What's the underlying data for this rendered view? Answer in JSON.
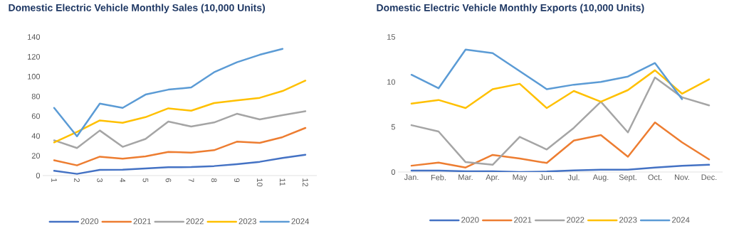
{
  "chart_data": [
    {
      "type": "line",
      "title": "Domestic Electric Vehicle Monthly Sales (10,000 Units)",
      "categories": [
        "1",
        "2",
        "3",
        "4",
        "5",
        "6",
        "7",
        "8",
        "9",
        "10",
        "11",
        "12"
      ],
      "ylim": [
        0,
        140
      ],
      "yticks": [
        0,
        20,
        40,
        60,
        80,
        100,
        120,
        140
      ],
      "legend": "bottom",
      "series": [
        {
          "name": "2020",
          "color": "#4472c4",
          "values": [
            4.8,
            1.7,
            5.7,
            6,
            7.2,
            8.4,
            8.6,
            9.6,
            11.5,
            13.9,
            17.7,
            21
          ]
        },
        {
          "name": "2021",
          "color": "#ed7d31",
          "values": [
            15.5,
            10.3,
            19.1,
            17,
            19.4,
            23.9,
            23.2,
            25.6,
            34.2,
            33,
            38.8,
            48.1
          ]
        },
        {
          "name": "2022",
          "color": "#a5a5a5",
          "values": [
            35.6,
            27.8,
            45.5,
            29,
            37,
            54.5,
            49.5,
            53.6,
            62.4,
            56.7,
            61,
            65
          ]
        },
        {
          "name": "2023",
          "color": "#ffc000",
          "values": [
            33.5,
            44,
            55.7,
            53.3,
            59,
            67.9,
            65.5,
            73.2,
            76,
            78.5,
            85.4,
            95.9
          ]
        },
        {
          "name": "2024",
          "color": "#5b9bd5",
          "values": [
            68.4,
            39.7,
            72.7,
            68.4,
            81.8,
            86.8,
            89,
            104.3,
            114.4,
            122,
            128,
            null
          ]
        }
      ]
    },
    {
      "type": "line",
      "title": "Domestic Electric Vehicle Monthly Exports (10,000 Units)",
      "categories": [
        "Jan.",
        "Feb.",
        "Mar.",
        "Apr.",
        "May",
        "Jun.",
        "Jul.",
        "Aug.",
        "Sept.",
        "Oct.",
        "Nov.",
        "Dec."
      ],
      "ylim": [
        0,
        15
      ],
      "yticks": [
        0,
        5,
        10,
        15
      ],
      "legend": "bottom",
      "series": [
        {
          "name": "2020",
          "color": "#4472c4",
          "values": [
            0.16,
            0.16,
            0.08,
            0.08,
            0,
            0.05,
            0.18,
            0.26,
            0.26,
            0.5,
            0.7,
            0.8
          ]
        },
        {
          "name": "2021",
          "color": "#ed7d31",
          "values": [
            0.7,
            1.05,
            0.5,
            1.9,
            1.5,
            1.0,
            3.5,
            4.1,
            1.7,
            5.5,
            3.3,
            1.4
          ]
        },
        {
          "name": "2022",
          "color": "#a5a5a5",
          "values": [
            5.2,
            4.5,
            1.1,
            0.8,
            3.9,
            2.5,
            4.9,
            7.8,
            4.4,
            10.5,
            8.3,
            7.4
          ]
        },
        {
          "name": "2023",
          "color": "#ffc000",
          "values": [
            7.6,
            8.0,
            7.1,
            9.2,
            9.8,
            7.1,
            9.0,
            7.8,
            9.1,
            11.3,
            8.7,
            10.3
          ]
        },
        {
          "name": "2024",
          "color": "#5b9bd5",
          "values": [
            10.8,
            9.3,
            13.6,
            13.2,
            11.2,
            9.2,
            9.7,
            10.0,
            10.6,
            12.1,
            8.1,
            null
          ]
        }
      ]
    }
  ]
}
